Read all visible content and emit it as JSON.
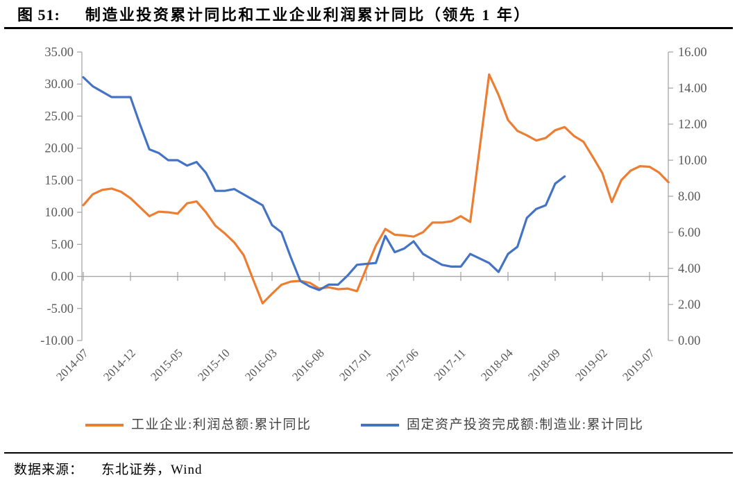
{
  "title": {
    "prefix": "图 51:",
    "text": "制造业投资累计同比和工业企业利润累计同比（领先 1 年）"
  },
  "source": {
    "label": "数据来源：",
    "text": "东北证券，Wind"
  },
  "chart_data": {
    "type": "line",
    "title": "制造业投资累计同比和工业企业利润累计同比（领先 1 年）",
    "grid": "none",
    "legend_position": "bottom",
    "x_tick_labels": [
      "2014-07",
      "2014-12",
      "2015-05",
      "2015-10",
      "2016-03",
      "2016-08",
      "2017-01",
      "2017-06",
      "2017-11",
      "2018-04",
      "2018-09",
      "2019-02",
      "2019-07"
    ],
    "months": [
      "2014-07",
      "2014-08",
      "2014-09",
      "2014-10",
      "2014-11",
      "2014-12",
      "2015-01",
      "2015-02",
      "2015-03",
      "2015-04",
      "2015-05",
      "2015-06",
      "2015-07",
      "2015-08",
      "2015-09",
      "2015-10",
      "2015-11",
      "2015-12",
      "2016-01",
      "2016-02",
      "2016-03",
      "2016-04",
      "2016-05",
      "2016-06",
      "2016-07",
      "2016-08",
      "2016-09",
      "2016-10",
      "2016-11",
      "2016-12",
      "2017-01",
      "2017-02",
      "2017-03",
      "2017-04",
      "2017-05",
      "2017-06",
      "2017-07",
      "2017-08",
      "2017-09",
      "2017-10",
      "2017-11",
      "2017-12",
      "2018-01",
      "2018-02",
      "2018-03",
      "2018-04",
      "2018-05",
      "2018-06",
      "2018-07",
      "2018-08",
      "2018-09",
      "2018-10",
      "2018-11",
      "2018-12",
      "2019-01",
      "2019-02",
      "2019-03",
      "2019-04",
      "2019-05",
      "2019-06",
      "2019-07",
      "2019-08",
      "2019-09"
    ],
    "left_axis": {
      "min": -10,
      "max": 35,
      "ticks": [
        35,
        30,
        25,
        20,
        15,
        10,
        5,
        0,
        -5,
        -10
      ],
      "tick_labels": [
        "35.00",
        "30.00",
        "25.00",
        "20.00",
        "15.00",
        "10.00",
        "5.00",
        "0.00",
        "-5.00",
        "-10.00"
      ]
    },
    "right_axis": {
      "min": 0,
      "max": 16,
      "ticks": [
        16,
        14,
        12,
        10,
        8,
        6,
        4,
        2,
        0
      ],
      "tick_labels": [
        "16.00",
        "14.00",
        "12.00",
        "10.00",
        "8.00",
        "6.00",
        "4.00",
        "2.00",
        "0.00"
      ]
    },
    "series": [
      {
        "name": "工业企业:利润总额:累计同比",
        "axis": "left",
        "color": "#ED7D31",
        "values": [
          11.1,
          12.8,
          13.5,
          13.7,
          13.2,
          12.2,
          10.8,
          9.4,
          10.1,
          10.0,
          9.8,
          11.4,
          11.7,
          10.0,
          7.9,
          6.7,
          5.3,
          3.3,
          -0.5,
          -4.2,
          -2.7,
          -1.3,
          -0.8,
          -0.7,
          -1.0,
          -1.9,
          -1.7,
          -2.0,
          -1.9,
          -2.3,
          1.3,
          4.8,
          7.4,
          6.5,
          6.4,
          6.2,
          6.9,
          8.4,
          8.4,
          8.6,
          9.4,
          8.5,
          20.0,
          31.5,
          28.3,
          24.4,
          22.7,
          22.0,
          21.2,
          21.6,
          22.8,
          23.3,
          21.9,
          21.0,
          18.6,
          16.1,
          11.6,
          15.0,
          16.5,
          17.2,
          17.1,
          16.2,
          14.7
        ]
      },
      {
        "name": "固定资产投资完成额:制造业:累计同比",
        "axis": "right",
        "color": "#4472C4",
        "values": [
          14.6,
          14.1,
          13.8,
          13.5,
          13.5,
          13.5,
          12.0,
          10.6,
          10.4,
          10.0,
          10.0,
          9.7,
          9.9,
          9.3,
          8.3,
          8.3,
          8.4,
          8.1,
          7.8,
          7.5,
          6.4,
          6.0,
          4.6,
          3.3,
          3.0,
          2.8,
          3.1,
          3.1,
          3.6,
          4.2,
          4.25,
          4.3,
          5.8,
          4.9,
          5.1,
          5.5,
          4.8,
          4.5,
          4.2,
          4.1,
          4.1,
          4.8,
          4.55,
          4.3,
          3.8,
          4.8,
          5.2,
          6.8,
          7.3,
          7.5,
          8.7,
          9.1
        ]
      }
    ]
  },
  "colors": {
    "axis_line": "#A6A6A6",
    "tick_label": "#595959",
    "title_text": "#000000",
    "rule": "#000000"
  }
}
